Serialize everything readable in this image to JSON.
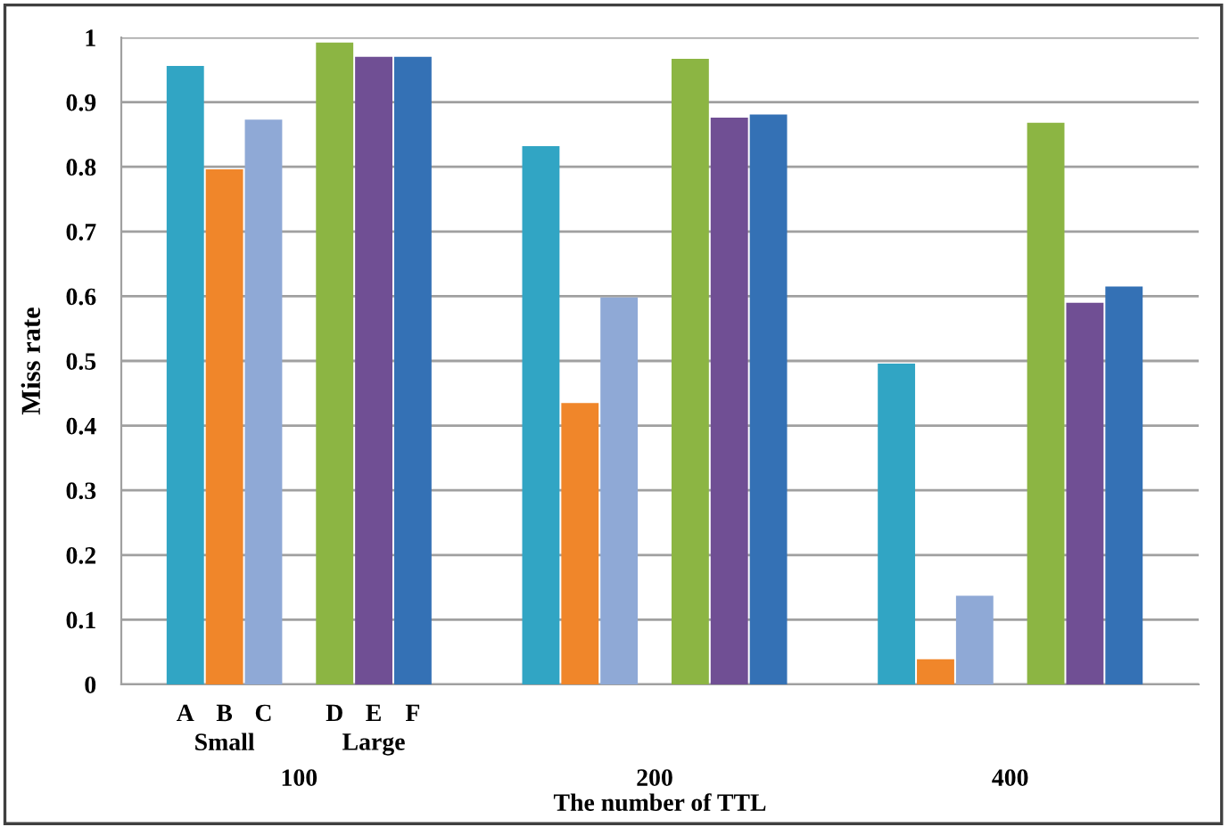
{
  "chart_data": {
    "type": "bar",
    "xlabel": "The number of TTL",
    "ylabel": "Miss rate",
    "categories": [
      "100",
      "200",
      "400"
    ],
    "series": [
      {
        "name": "A",
        "color": "#31a5c4",
        "values": [
          0.956,
          0.832,
          0.496
        ]
      },
      {
        "name": "B",
        "color": "#f0862a",
        "values": [
          0.796,
          0.435,
          0.039
        ]
      },
      {
        "name": "C",
        "color": "#8fa9d6",
        "values": [
          0.873,
          0.598,
          0.137
        ]
      },
      {
        "name": "D",
        "color": "#8cb543",
        "values": [
          0.992,
          0.967,
          0.868
        ]
      },
      {
        "name": "E",
        "color": "#704f94",
        "values": [
          0.97,
          0.876,
          0.59
        ]
      },
      {
        "name": "F",
        "color": "#3471b5",
        "values": [
          0.97,
          0.881,
          0.615
        ]
      }
    ],
    "annotations": [
      "Small",
      "Large"
    ],
    "ylim": [
      0,
      1
    ],
    "yticks": [
      0,
      0.1,
      0.2,
      0.3,
      0.4,
      0.5,
      0.6,
      0.7,
      0.8,
      0.9,
      1
    ],
    "grid": "y",
    "legend": false
  }
}
